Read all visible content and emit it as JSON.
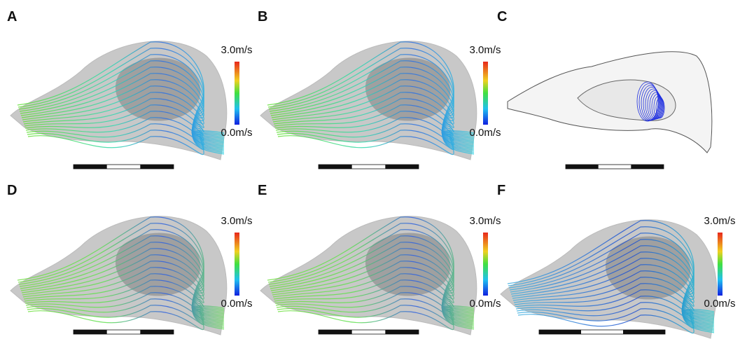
{
  "panels": [
    {
      "label": "A",
      "colorbar": {
        "max": "3.0m/s",
        "min": "0.0m/s"
      }
    },
    {
      "label": "B",
      "colorbar": {
        "max": "3.0m/s",
        "min": "0.0m/s"
      }
    },
    {
      "label": "C"
    },
    {
      "label": "D",
      "colorbar": {
        "max": "3.0m/s",
        "min": "0.0m/s"
      }
    },
    {
      "label": "E",
      "colorbar": {
        "max": "3.0m/s",
        "min": "0.0m/s"
      }
    },
    {
      "label": "F",
      "colorbar": {
        "max": "3.0m/s",
        "min": "0.0m/s"
      }
    }
  ]
}
